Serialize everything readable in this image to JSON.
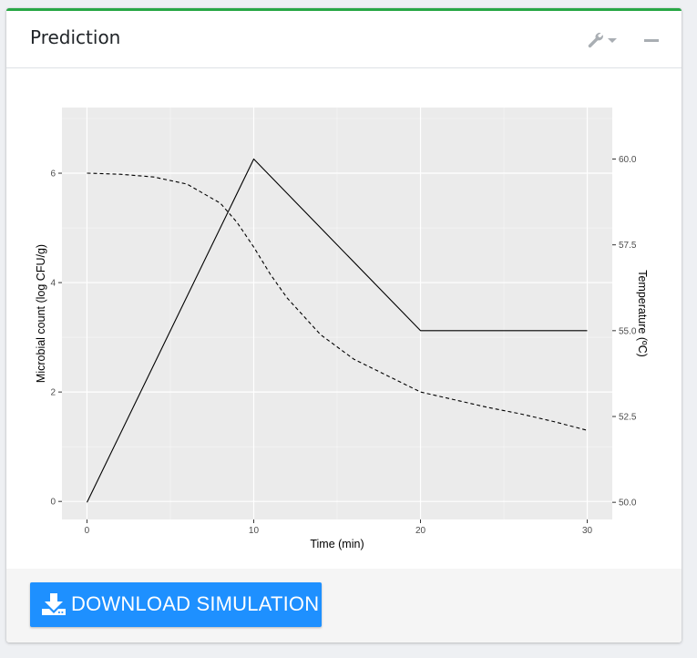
{
  "card": {
    "title": "Prediction",
    "accent_color": "#28a745",
    "tools": {
      "settings_icon": "wrench-icon",
      "dropdown_icon": "caret-down-icon",
      "collapse_icon": "minus-icon"
    }
  },
  "footer": {
    "download_label": "DOWNLOAD SIMULATION",
    "download_icon": "download-icon",
    "button_color": "#1e90ff"
  },
  "chart_data": {
    "type": "line",
    "xlabel": "Time (min)",
    "ylabel": "Microbial count (log CFU/g)",
    "y2label": "Temperature (ºC)",
    "xlim": [
      -1.5,
      31.5
    ],
    "ylim": [
      -0.33,
      7.2
    ],
    "y2lim": [
      49.5,
      61.5
    ],
    "x_ticks": [
      0,
      10,
      20,
      30
    ],
    "x_tick_labels": [
      "0",
      "10",
      "20",
      "30"
    ],
    "x_minor_ticks": [
      5,
      15,
      25
    ],
    "y_ticks": [
      0,
      2,
      4,
      6
    ],
    "y_tick_labels": [
      "0",
      "2",
      "4",
      "6"
    ],
    "y_minor_ticks": [
      1,
      3,
      5,
      7
    ],
    "y2_ticks": [
      50.0,
      52.5,
      55.0,
      57.5,
      60.0
    ],
    "y2_tick_labels": [
      "50.0",
      "52.5",
      "55.0",
      "57.5",
      "60.0"
    ],
    "grid": true,
    "background": "#ebebeb",
    "series": [
      {
        "axis": "left",
        "style": "dashed",
        "x": [
          0,
          2,
          4,
          6,
          8,
          9,
          10,
          11,
          12,
          14,
          16,
          18,
          20,
          22,
          24,
          26,
          28,
          30
        ],
        "y": [
          6.0,
          5.98,
          5.93,
          5.8,
          5.45,
          5.1,
          4.65,
          4.15,
          3.72,
          3.05,
          2.6,
          2.3,
          2.0,
          1.86,
          1.72,
          1.6,
          1.46,
          1.3
        ]
      },
      {
        "axis": "right",
        "style": "solid",
        "x": [
          0,
          10,
          20,
          30
        ],
        "y": [
          50,
          60,
          55,
          55
        ]
      }
    ]
  }
}
